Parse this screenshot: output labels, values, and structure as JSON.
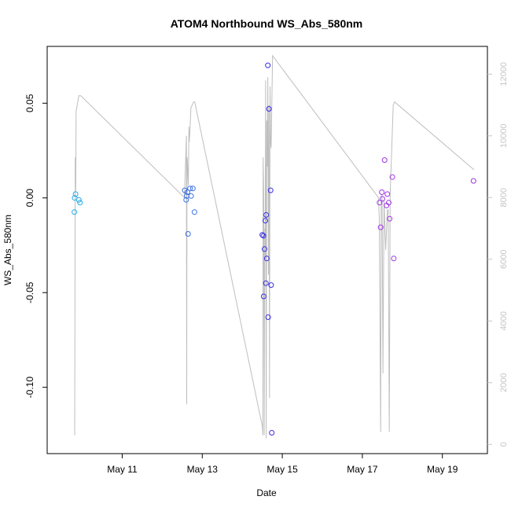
{
  "chart_data": {
    "type": "scatter",
    "title": "ATOM4 Northbound WS_Abs_580nm",
    "xlabel": "Date",
    "ylabel": "WS_Abs_580nm",
    "xlim": [
      "2024-05-09 03:00",
      "2024-05-20 03:00"
    ],
    "ylim": [
      -0.135,
      0.08
    ],
    "y2lim": [
      -300,
      12900
    ],
    "x_ticks": [
      {
        "label": "May 11",
        "value": "2024-05-11 00:00"
      },
      {
        "label": "May 13",
        "value": "2024-05-13 00:00"
      },
      {
        "label": "May 15",
        "value": "2024-05-15 00:00"
      },
      {
        "label": "May 17",
        "value": "2024-05-17 00:00"
      },
      {
        "label": "May 19",
        "value": "2024-05-19 00:00"
      }
    ],
    "y_ticks": [
      "-0.10",
      "-0.05",
      "0.00",
      "0.05"
    ],
    "y_tick_values": [
      -0.1,
      -0.05,
      0,
      0.05
    ],
    "y2_ticks": [
      "0",
      "2000",
      "4000",
      "6000",
      "8000",
      "10000",
      "12000"
    ],
    "y2_tick_values": [
      0,
      2000,
      4000,
      6000,
      8000,
      10000,
      12000
    ],
    "grid": false,
    "legend": "none",
    "colors": {
      "line": "#bebebe",
      "right_axis": "#c4c4c4"
    },
    "points": [
      {
        "x": "2024-05-09 19:20",
        "y": -0.0075,
        "color": "#21a9e6"
      },
      {
        "x": "2024-05-09 19:30",
        "y": 0.0,
        "color": "#21a9e6"
      },
      {
        "x": "2024-05-09 20:00",
        "y": 0.002,
        "color": "#21a9e6"
      },
      {
        "x": "2024-05-09 22:00",
        "y": -0.001,
        "color": "#21a9e6"
      },
      {
        "x": "2024-05-09 22:40",
        "y": -0.0025,
        "color": "#21a9e6"
      },
      {
        "x": "2024-05-12 13:30",
        "y": 0.004,
        "color": "#3a6fe4"
      },
      {
        "x": "2024-05-12 14:20",
        "y": -0.001,
        "color": "#3a6fe4"
      },
      {
        "x": "2024-05-12 14:40",
        "y": 0.001,
        "color": "#3a6fe4"
      },
      {
        "x": "2024-05-12 15:10",
        "y": 0.003,
        "color": "#3a6fe4"
      },
      {
        "x": "2024-05-12 15:30",
        "y": -0.019,
        "color": "#3a6fe4"
      },
      {
        "x": "2024-05-12 16:40",
        "y": 0.005,
        "color": "#3a6fe4"
      },
      {
        "x": "2024-05-12 17:20",
        "y": 0.001,
        "color": "#3a6fe4"
      },
      {
        "x": "2024-05-12 18:20",
        "y": 0.005,
        "color": "#3a6fe4"
      },
      {
        "x": "2024-05-12 19:20",
        "y": -0.0075,
        "color": "#3a6fe4"
      },
      {
        "x": "2024-05-14 12:00",
        "y": -0.0195,
        "color": "#3a2fe3"
      },
      {
        "x": "2024-05-14 12:40",
        "y": -0.02,
        "color": "#3a2fe3"
      },
      {
        "x": "2024-05-14 12:50",
        "y": -0.052,
        "color": "#3a2fe3"
      },
      {
        "x": "2024-05-14 13:20",
        "y": -0.027,
        "color": "#3a2fe3"
      },
      {
        "x": "2024-05-14 13:50",
        "y": -0.012,
        "color": "#3a2fe3"
      },
      {
        "x": "2024-05-14 14:10",
        "y": -0.045,
        "color": "#3a2fe3"
      },
      {
        "x": "2024-05-14 14:20",
        "y": -0.009,
        "color": "#3a2fe3"
      },
      {
        "x": "2024-05-14 14:40",
        "y": -0.032,
        "color": "#3a2fe3"
      },
      {
        "x": "2024-05-14 15:20",
        "y": 0.07,
        "color": "#3a2fe3"
      },
      {
        "x": "2024-05-14 15:30",
        "y": -0.063,
        "color": "#3a2fe3"
      },
      {
        "x": "2024-05-14 16:00",
        "y": 0.047,
        "color": "#3a2fe3"
      },
      {
        "x": "2024-05-14 17:00",
        "y": 0.004,
        "color": "#3a2fe3"
      },
      {
        "x": "2024-05-14 17:20",
        "y": -0.046,
        "color": "#3a2fe3"
      },
      {
        "x": "2024-05-14 17:40",
        "y": -0.124,
        "color": "#3a2fe3"
      },
      {
        "x": "2024-05-17 10:20",
        "y": -0.0025,
        "color": "#a034e8"
      },
      {
        "x": "2024-05-17 11:00",
        "y": -0.0155,
        "color": "#a034e8"
      },
      {
        "x": "2024-05-17 11:40",
        "y": 0.003,
        "color": "#a034e8"
      },
      {
        "x": "2024-05-17 12:00",
        "y": -0.0005,
        "color": "#a034e8"
      },
      {
        "x": "2024-05-17 13:20",
        "y": 0.02,
        "color": "#a034e8"
      },
      {
        "x": "2024-05-17 14:30",
        "y": -0.004,
        "color": "#a034e8"
      },
      {
        "x": "2024-05-17 15:00",
        "y": 0.002,
        "color": "#a034e8"
      },
      {
        "x": "2024-05-17 15:50",
        "y": -0.0025,
        "color": "#a034e8"
      },
      {
        "x": "2024-05-17 16:20",
        "y": -0.011,
        "color": "#a034e8"
      },
      {
        "x": "2024-05-17 18:00",
        "y": 0.011,
        "color": "#a034e8"
      },
      {
        "x": "2024-05-17 18:50",
        "y": -0.032,
        "color": "#a034e8"
      },
      {
        "x": "2024-05-19 18:40",
        "y": 0.009,
        "color": "#a034e8"
      }
    ],
    "line_series": {
      "axis": "right",
      "x": [
        "2024-05-09 19:30",
        "2024-05-09 19:50",
        "2024-05-09 20:00",
        "2024-05-09 20:10",
        "2024-05-09 20:20",
        "2024-05-09 22:00",
        "2024-05-09 23:10",
        "2024-05-12 13:20",
        "2024-05-12 14:30",
        "2024-05-12 14:40",
        "2024-05-12 14:50",
        "2024-05-12 15:00",
        "2024-05-12 15:40",
        "2024-05-12 16:00",
        "2024-05-12 16:10",
        "2024-05-12 16:40",
        "2024-05-12 17:10",
        "2024-05-12 18:00",
        "2024-05-12 18:50",
        "2024-05-12 19:30",
        "2024-05-14 12:00",
        "2024-05-14 12:20",
        "2024-05-14 12:30",
        "2024-05-14 12:50",
        "2024-05-14 13:10",
        "2024-05-14 13:30",
        "2024-05-14 13:40",
        "2024-05-14 14:00",
        "2024-05-14 14:20",
        "2024-05-14 14:40",
        "2024-05-14 15:00",
        "2024-05-14 15:20",
        "2024-05-14 15:40",
        "2024-05-14 16:00",
        "2024-05-14 16:20",
        "2024-05-14 16:40",
        "2024-05-14 17:00",
        "2024-05-14 17:20",
        "2024-05-14 18:10",
        "2024-05-17 09:40",
        "2024-05-17 10:10",
        "2024-05-17 11:00",
        "2024-05-17 11:20",
        "2024-05-17 11:50",
        "2024-05-17 12:20",
        "2024-05-17 13:00",
        "2024-05-17 14:00",
        "2024-05-17 15:00",
        "2024-05-17 15:30",
        "2024-05-17 16:10",
        "2024-05-17 16:40",
        "2024-05-17 18:30",
        "2024-05-17 19:20",
        "2024-05-19 19:00"
      ],
      "y": [
        300,
        9300,
        8200,
        8500,
        10800,
        11300,
        11300,
        8000,
        10000,
        1300,
        8000,
        9300,
        8400,
        10300,
        9800,
        10200,
        10900,
        11000,
        11100,
        11100,
        600,
        300,
        9300,
        8200,
        300,
        7000,
        6000,
        11800,
        200,
        10500,
        9000,
        11900,
        5500,
        11000,
        1500,
        11600,
        9800,
        9600,
        12600,
        8000,
        7300,
        400,
        7800,
        8100,
        2300,
        7900,
        6300,
        7600,
        7600,
        400,
        8100,
        11000,
        11100,
        8900
      ]
    }
  }
}
